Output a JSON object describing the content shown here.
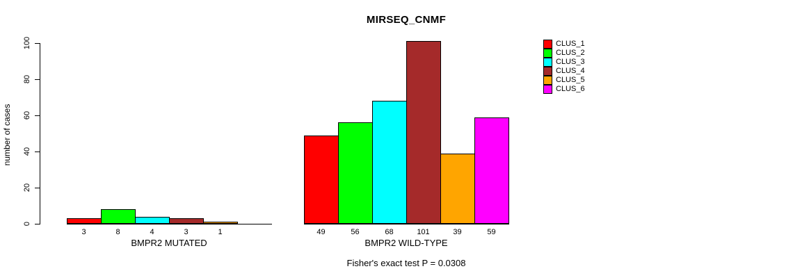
{
  "chart_data": {
    "type": "bar",
    "title": "MIRSEQ_CNMF",
    "ylabel": "number of cases",
    "xlabel": "",
    "annotation": "Fisher's exact test P = 0.0308",
    "ylim": [
      0,
      100
    ],
    "yticks": [
      0,
      20,
      40,
      60,
      80,
      100
    ],
    "grid": false,
    "legend_position": "right-outside",
    "text_color": "#000000",
    "background_color": "#ffffff",
    "series": [
      {
        "name": "CLUS_1",
        "color": "#FF0000"
      },
      {
        "name": "CLUS_2",
        "color": "#00FF00"
      },
      {
        "name": "CLUS_3",
        "color": "#00FFFF"
      },
      {
        "name": "CLUS_4",
        "color": "#A52A2A"
      },
      {
        "name": "CLUS_5",
        "color": "#FFA500"
      },
      {
        "name": "CLUS_6",
        "color": "#FF00FF"
      }
    ],
    "groups": [
      {
        "label": "BMPR2 MUTATED",
        "values": [
          3,
          8,
          4,
          3,
          1,
          0
        ],
        "bar_labels": [
          "3",
          "8",
          "4",
          "3",
          "1",
          ""
        ]
      },
      {
        "label": "BMPR2 WILD-TYPE",
        "values": [
          49,
          56,
          68,
          101,
          39,
          59
        ],
        "bar_labels": [
          "49",
          "56",
          "68",
          "101",
          "39",
          "59"
        ]
      }
    ]
  }
}
